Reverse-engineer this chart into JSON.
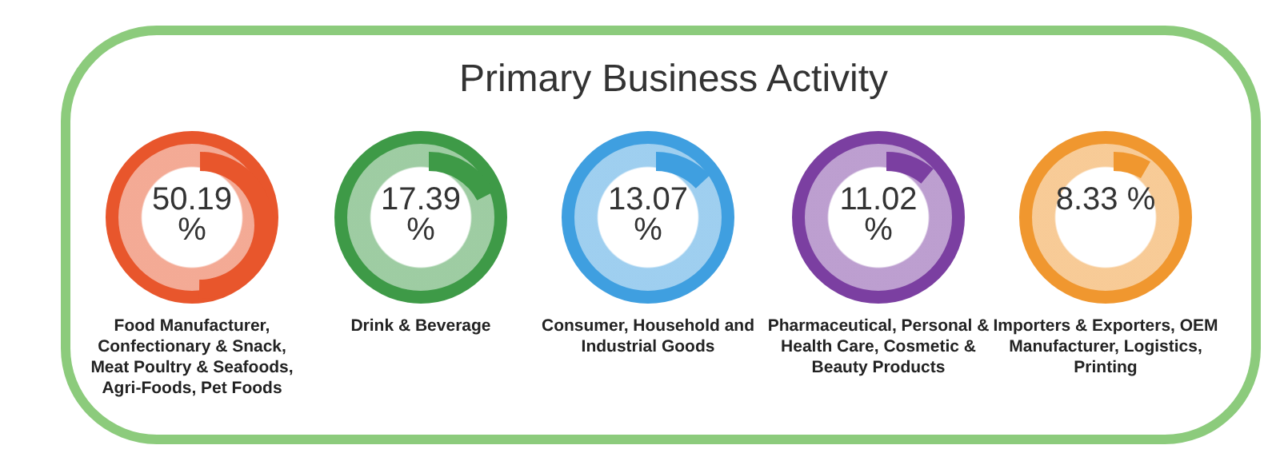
{
  "chart_data": {
    "type": "other",
    "title": "Primary Business Activity",
    "categories": [
      "Food Manufacturer, Confectionary & Snack, Meat Poultry & Seafoods, Agri-Foods, Pet Foods",
      "Drink & Beverage",
      "Consumer, Household and Industrial Goods",
      "Pharmaceutical, Personal & Health Care, Cosmetic & Beauty Products",
      "Importers & Exporters, OEM Manufacturer, Logistics, Printing"
    ],
    "values": [
      50.19,
      17.39,
      13.07,
      11.02,
      8.33
    ],
    "value_labels": [
      "50.19 %",
      "17.39 %",
      "13.07 %",
      "11.02 %",
      "8.33 %"
    ],
    "colors": [
      "#e8562c",
      "#3e9a47",
      "#3f9fe0",
      "#7b3fa1",
      "#f0972f"
    ]
  }
}
